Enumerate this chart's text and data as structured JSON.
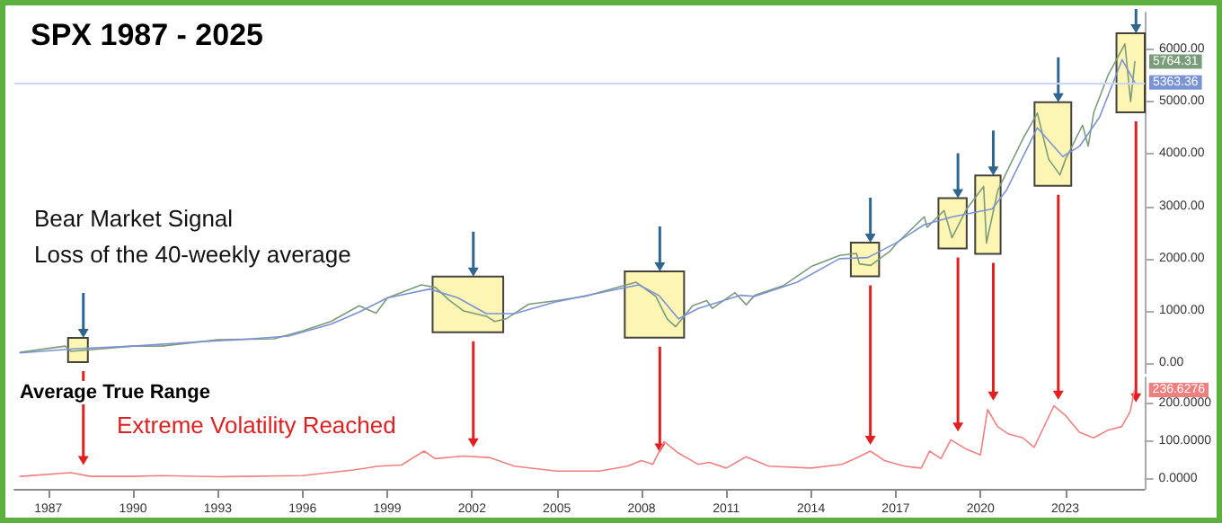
{
  "chart_data": [
    {
      "type": "line",
      "title": "SPX 1987 - 2025",
      "annotations": [
        "Bear Market Signal",
        "Loss of the 40-weekly average"
      ],
      "series": [
        {
          "color": "#7a9c7a",
          "x": [
            1986.0,
            1987.6,
            1987.8,
            1990.0,
            1991.0,
            1993.0,
            1995.0,
            1996.0,
            1997.0,
            1998.0,
            1998.6,
            1999.0,
            2000.2,
            2000.7,
            2001.2,
            2001.7,
            2002.5,
            2002.8,
            2003.2,
            2004.0,
            2005.0,
            2006.0,
            2007.0,
            2007.8,
            2008.5,
            2008.9,
            2009.2,
            2009.8,
            2010.3,
            2010.5,
            2011.3,
            2011.7,
            2012.0,
            2013.0,
            2014.0,
            2015.0,
            2015.6,
            2015.7,
            2016.1,
            2016.8,
            2017.0,
            2018.0,
            2018.1,
            2018.7,
            2018.98,
            2019.5,
            2020.1,
            2020.2,
            2020.6,
            2021.0,
            2021.5,
            2022.0,
            2022.4,
            2022.8,
            2023.0,
            2023.6,
            2023.8,
            2024.0,
            2024.5,
            2025.1,
            2025.3,
            2025.45
          ],
          "values": [
            210,
            330,
            230,
            330,
            330,
            450,
            470,
            620,
            800,
            1100,
            960,
            1250,
            1500,
            1450,
            1200,
            1000,
            900,
            800,
            850,
            1130,
            1200,
            1280,
            1430,
            1550,
            1280,
            850,
            700,
            1100,
            1200,
            1050,
            1350,
            1120,
            1300,
            1480,
            1850,
            2060,
            2100,
            1900,
            1870,
            2150,
            2280,
            2800,
            2600,
            2920,
            2400,
            2950,
            3380,
            2300,
            3300,
            3750,
            4300,
            4780,
            3900,
            3600,
            3900,
            4550,
            4150,
            4800,
            5500,
            6100,
            5000,
            5764.31
          ],
          "value_labels": [
            null,
            null,
            null,
            null,
            null,
            null,
            null,
            null,
            null,
            null,
            null,
            null,
            null,
            null,
            null,
            null,
            null,
            null,
            null,
            null,
            null,
            null,
            null,
            null,
            null,
            null,
            null,
            null,
            null,
            null,
            null,
            null,
            null,
            null,
            null,
            null,
            null,
            null,
            null,
            null,
            null,
            null,
            null,
            null,
            null,
            null,
            null,
            null,
            null,
            null,
            null,
            null,
            null,
            null,
            null,
            null,
            null,
            null,
            null,
            null,
            null,
            "5764.31"
          ]
        },
        {
          "color": "#7b93d6",
          "x": [
            1986.0,
            1988.0,
            1990.0,
            1992.0,
            1994.0,
            1995.5,
            1997.0,
            1998.0,
            1999.0,
            2000.5,
            2001.5,
            2002.5,
            2003.5,
            2005.0,
            2007.0,
            2007.9,
            2008.6,
            2009.3,
            2010.0,
            2011.5,
            2012.0,
            2013.5,
            2015.0,
            2016.0,
            2017.0,
            2018.0,
            2019.0,
            2020.4,
            2020.9,
            2022.0,
            2022.9,
            2023.5,
            2024.2,
            2025.0,
            2025.45
          ],
          "values": [
            200,
            280,
            330,
            400,
            460,
            520,
            750,
            980,
            1250,
            1420,
            1250,
            950,
            950,
            1180,
            1400,
            1500,
            1300,
            850,
            1050,
            1300,
            1280,
            1550,
            2000,
            2020,
            2300,
            2650,
            2800,
            2950,
            3300,
            4500,
            3950,
            4150,
            4700,
            5800,
            5363.36
          ],
          "value_labels": [
            null,
            null,
            null,
            null,
            null,
            null,
            null,
            null,
            null,
            null,
            null,
            null,
            null,
            null,
            null,
            null,
            null,
            null,
            null,
            null,
            null,
            null,
            null,
            null,
            null,
            null,
            null,
            null,
            null,
            null,
            null,
            null,
            null,
            null,
            "5363.36"
          ]
        }
      ],
      "bands": [
        {
          "axis": "x",
          "from": 1987.7,
          "to": 1988.4,
          "color": "#fbf3a6"
        },
        {
          "axis": "x",
          "from": 2000.6,
          "to": 2003.1,
          "color": "#fbf3a6"
        },
        {
          "axis": "x",
          "from": 2007.4,
          "to": 2009.5,
          "color": "#fbf3a6"
        },
        {
          "axis": "x",
          "from": 2015.4,
          "to": 2016.4,
          "color": "#fbf3a6"
        },
        {
          "axis": "x",
          "from": 2018.5,
          "to": 2019.5,
          "color": "#fbf3a6"
        },
        {
          "axis": "x",
          "from": 2019.8,
          "to": 2020.7,
          "color": "#fbf3a6"
        },
        {
          "axis": "x",
          "from": 2021.9,
          "to": 2023.2,
          "color": "#fbf3a6"
        },
        {
          "axis": "x",
          "from": 2024.8,
          "to": 2025.8,
          "color": "#fbf3a6"
        }
      ],
      "ref_lines": [
        {
          "axis": "y",
          "value": 5363.36,
          "color": "#c9d6f5"
        }
      ],
      "xlim": [
        1985.8,
        2025.8
      ],
      "ylim": [
        -200,
        6700
      ],
      "yticks": [
        {
          "value": 0,
          "label": "0.00"
        },
        {
          "value": 1000,
          "label": "1000.00"
        },
        {
          "value": 2000,
          "label": "2000.00"
        },
        {
          "value": 3000,
          "label": "3000.00"
        },
        {
          "value": 4000,
          "label": "4000.00"
        },
        {
          "value": 5000,
          "label": "5000.00"
        },
        {
          "value": 6000,
          "label": "6000.00"
        }
      ],
      "tick_labels": "y",
      "grid": false,
      "marker": "none",
      "line_style": "solid"
    },
    {
      "type": "line",
      "title": "Average True Range",
      "annotations": [
        "Extreme Volatility Reached"
      ],
      "series": [
        {
          "color": "#f08080",
          "x": [
            1986.0,
            1987.8,
            1988.5,
            1990.0,
            1991.0,
            1993.0,
            1996.0,
            1997.8,
            1998.7,
            1999.5,
            2000.3,
            2000.7,
            2001.7,
            2002.6,
            2003.5,
            2005.0,
            2006.5,
            2007.5,
            2008.0,
            2008.4,
            2008.8,
            2009.3,
            2010.0,
            2010.4,
            2011.0,
            2011.7,
            2012.5,
            2014.0,
            2015.1,
            2015.7,
            2016.1,
            2016.6,
            2017.3,
            2017.9,
            2018.2,
            2018.6,
            2018.95,
            2019.5,
            2020.0,
            2020.25,
            2020.6,
            2021.0,
            2021.5,
            2021.9,
            2022.6,
            2023.0,
            2023.5,
            2024.0,
            2024.5,
            2025.0,
            2025.3,
            2025.45
          ],
          "values": [
            8,
            18,
            8,
            8,
            10,
            7,
            10,
            25,
            35,
            38,
            75,
            55,
            62,
            58,
            35,
            22,
            22,
            35,
            50,
            40,
            100,
            70,
            40,
            45,
            30,
            60,
            35,
            30,
            40,
            60,
            75,
            50,
            35,
            30,
            75,
            55,
            105,
            80,
            65,
            185,
            140,
            120,
            110,
            85,
            195,
            170,
            125,
            110,
            130,
            140,
            180,
            236.6276
          ],
          "value_labels": [
            null,
            null,
            null,
            null,
            null,
            null,
            null,
            null,
            null,
            null,
            null,
            null,
            null,
            null,
            null,
            null,
            null,
            null,
            null,
            null,
            null,
            null,
            null,
            null,
            null,
            null,
            null,
            null,
            null,
            null,
            null,
            null,
            null,
            null,
            null,
            null,
            null,
            null,
            null,
            null,
            null,
            null,
            null,
            null,
            null,
            null,
            null,
            null,
            null,
            null,
            null,
            "236.6276"
          ]
        }
      ],
      "xlim": [
        1985.8,
        2025.8
      ],
      "xticks": [
        1987,
        1990,
        1993,
        1996,
        1999,
        2002,
        2005,
        2008,
        2011,
        2014,
        2017,
        2020,
        2023
      ],
      "ylim": [
        -25,
        270
      ],
      "yticks": [
        {
          "value": 0,
          "label": "0.0000"
        },
        {
          "value": 100,
          "label": "100.0000"
        },
        {
          "value": 200,
          "label": "200.0000"
        }
      ],
      "grid": false,
      "marker": "none",
      "line_style": "solid"
    }
  ]
}
